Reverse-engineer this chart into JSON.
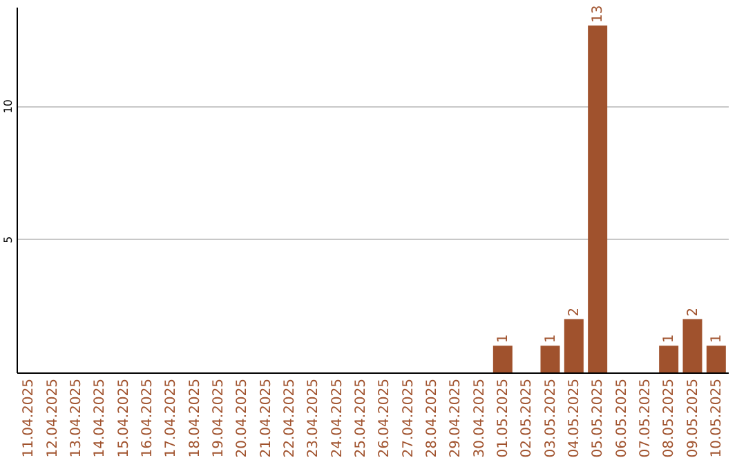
{
  "chart_data": {
    "type": "bar",
    "categories": [
      "11.04.2025",
      "12.04.2025",
      "13.04.2025",
      "14.04.2025",
      "15.04.2025",
      "16.04.2025",
      "17.04.2025",
      "18.04.2025",
      "19.04.2025",
      "20.04.2025",
      "21.04.2025",
      "22.04.2025",
      "23.04.2025",
      "24.04.2025",
      "25.04.2025",
      "26.04.2025",
      "27.04.2025",
      "28.04.2025",
      "29.04.2025",
      "30.04.2025",
      "01.05.2025",
      "02.05.2025",
      "03.05.2025",
      "04.05.2025",
      "05.05.2025",
      "06.05.2025",
      "07.05.2025",
      "08.05.2025",
      "09.05.2025",
      "10.05.2025"
    ],
    "values": [
      0,
      0,
      0,
      0,
      0,
      0,
      0,
      0,
      0,
      0,
      0,
      0,
      0,
      0,
      0,
      0,
      0,
      0,
      0,
      0,
      1,
      0,
      1,
      2,
      13,
      0,
      0,
      1,
      2,
      1
    ],
    "value_labels": [
      null,
      null,
      null,
      null,
      null,
      null,
      null,
      null,
      null,
      null,
      null,
      null,
      null,
      null,
      null,
      null,
      null,
      null,
      null,
      null,
      "1",
      null,
      "1",
      "2",
      "13",
      null,
      null,
      "1",
      "2",
      "1"
    ],
    "color": "#a0522d",
    "ylim": [
      0,
      13.7
    ],
    "yticks": [
      5,
      10
    ],
    "grid": "y"
  }
}
